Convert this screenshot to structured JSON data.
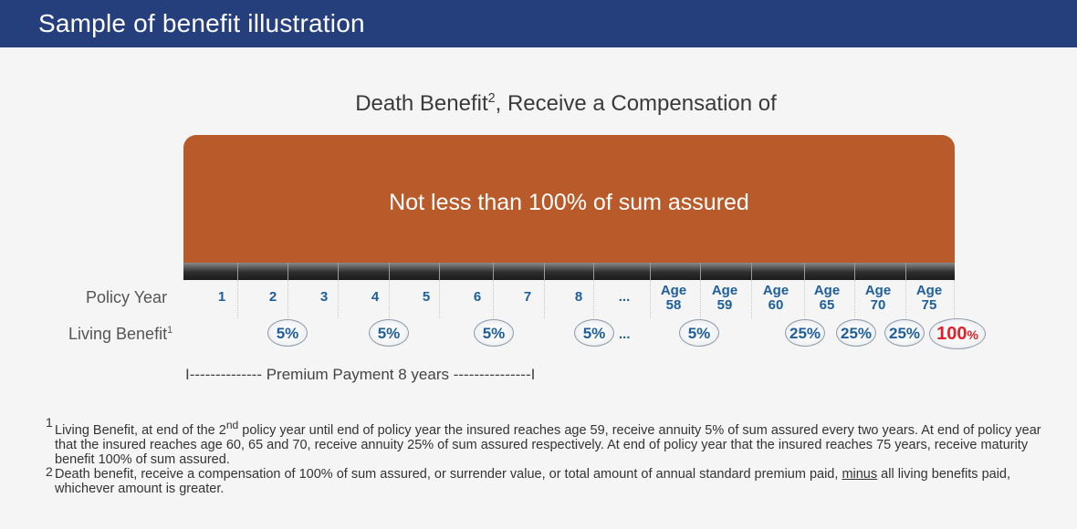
{
  "header": {
    "title": "Sample of benefit illustration"
  },
  "diagram": {
    "subtitle": "Death Benefit",
    "subtitle_sup": "2",
    "subtitle_rest": ", Receive a Compensation of",
    "banner_text": "Not less than 100% of sum assured",
    "policy_year_label": "Policy Year",
    "living_benefit_label": "Living Benefit",
    "living_benefit_sup": "1",
    "years": [
      {
        "line1": "1",
        "line2": ""
      },
      {
        "line1": "2",
        "line2": ""
      },
      {
        "line1": "3",
        "line2": ""
      },
      {
        "line1": "4",
        "line2": ""
      },
      {
        "line1": "5",
        "line2": ""
      },
      {
        "line1": "6",
        "line2": ""
      },
      {
        "line1": "7",
        "line2": ""
      },
      {
        "line1": "8",
        "line2": ""
      },
      {
        "line1": "...",
        "line2": ""
      },
      {
        "line1": "Age",
        "line2": "58"
      },
      {
        "line1": "Age",
        "line2": "59"
      },
      {
        "line1": "Age",
        "line2": "60"
      },
      {
        "line1": "Age",
        "line2": "65"
      },
      {
        "line1": "Age",
        "line2": "70"
      },
      {
        "line1": "Age",
        "line2": "75"
      }
    ],
    "benefits": [
      "5%",
      "5%",
      "5%",
      "5%",
      "5%",
      "25%",
      "25%",
      "25%"
    ],
    "benefit_dots": "...",
    "final_benefit": "100",
    "final_benefit_pct": "%",
    "premium_text": "I-------------- Premium Payment 8 years ---------------I",
    "colors": {
      "header_bg": "#253e7c",
      "banner": "#b95a2a",
      "year_text": "#1d5e9c",
      "final_benefit": "#e0202a"
    }
  },
  "footnotes": {
    "n1": "1",
    "n1_a": "Living Benefit, at end of the 2",
    "n1_sup": "nd",
    "n1_b": " policy year until end of policy year the insured reaches age 59, receive annuity 5% of sum assured every two years. At end of policy year that the insured reaches age 60, 65 and 70, receive annuity 25% of sum assured respectively.  At end of policy year that the insured reaches 75 years, receive maturity benefit 100% of sum assured.",
    "n2": "2",
    "n2_a": "Death benefit, receive a compensation of 100% of sum assured, or surrender value, or total amount of annual standard premium paid, ",
    "n2_u": "minus",
    "n2_b": " all living benefits paid, whichever amount is greater."
  }
}
